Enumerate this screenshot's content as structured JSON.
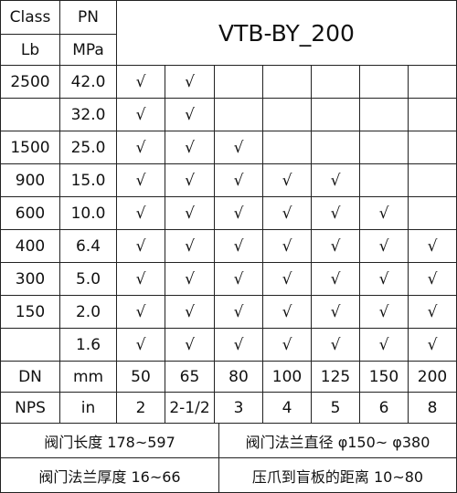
{
  "header": {
    "class_label": "Class",
    "pn_label": "PN",
    "class_unit": "Lb",
    "pn_unit": "MPa",
    "title": "VTB-BY_200"
  },
  "rows": [
    {
      "class": "2500",
      "pn": "42.0",
      "marks": [
        "√",
        "√"
      ]
    },
    {
      "pn": "32.0",
      "marks": [
        "√",
        "√"
      ]
    },
    {
      "class": "1500",
      "pn": "25.0",
      "marks": [
        "√",
        "√",
        "√"
      ]
    },
    {
      "class": "900",
      "pn": "15.0",
      "marks": [
        "√",
        "√",
        "√",
        "√",
        "√"
      ]
    },
    {
      "class": "600",
      "pn": "10.0",
      "marks": [
        "√",
        "√",
        "√",
        "√",
        "√",
        "√"
      ]
    },
    {
      "class": "400",
      "pn": "6.4",
      "marks": [
        "√",
        "√",
        "√",
        "√",
        "√",
        "√",
        "√"
      ]
    },
    {
      "class": "300",
      "pn": "5.0",
      "marks": [
        "√",
        "√",
        "√",
        "√",
        "√",
        "√",
        "√"
      ]
    },
    {
      "class": "150",
      "pn": "2.0",
      "marks": [
        "√",
        "√",
        "√",
        "√",
        "√",
        "√",
        "√"
      ]
    },
    {
      "pn": "1.6",
      "marks": [
        "√",
        "√",
        "√",
        "√",
        "√",
        "√",
        "√"
      ]
    }
  ],
  "sizes": [
    {
      "label": "DN",
      "unit": "mm",
      "values": [
        "50",
        "65",
        "80",
        "100",
        "125",
        "150",
        "200"
      ]
    },
    {
      "label": "NPS",
      "unit": "in",
      "values": [
        "2",
        "2-1/2",
        "3",
        "4",
        "5",
        "6",
        "8"
      ]
    }
  ],
  "footer": [
    [
      "阀门长度 178~597",
      "阀门法兰直径 φ150~ φ380"
    ],
    [
      "阀门法兰厚度 16~66",
      "压爪到盲板的距离 10~80"
    ]
  ]
}
